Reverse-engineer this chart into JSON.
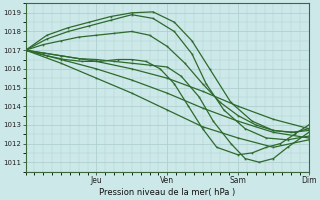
{
  "background_color": "#cce8e8",
  "plot_bg_color": "#cce8e8",
  "grid_color": "#b0d0d0",
  "line_color": "#2d6a2d",
  "xlabel_text": "Pression niveau de la mer( hPa )",
  "day_labels": [
    "Jeu",
    "Ven",
    "Sam",
    "Dim"
  ],
  "day_positions": [
    1.0,
    2.0,
    3.0,
    4.0
  ],
  "ylim": [
    1010.5,
    1019.5
  ],
  "xlim": [
    0,
    4.0
  ],
  "yticks": [
    1011,
    1012,
    1013,
    1014,
    1015,
    1016,
    1017,
    1018,
    1019
  ],
  "lines": [
    {
      "x": [
        0.0,
        0.3,
        0.6,
        0.9,
        1.2,
        1.5,
        1.8,
        2.1,
        2.35,
        2.6,
        2.9,
        3.2,
        3.5,
        3.8,
        4.0
      ],
      "y": [
        1017.0,
        1017.8,
        1018.2,
        1018.5,
        1018.8,
        1019.0,
        1019.05,
        1018.5,
        1017.5,
        1016.0,
        1014.2,
        1013.2,
        1012.7,
        1012.6,
        1012.8
      ]
    },
    {
      "x": [
        0.0,
        0.3,
        0.6,
        0.9,
        1.2,
        1.5,
        1.8,
        2.1,
        2.35,
        2.55,
        2.8,
        3.1,
        3.4,
        3.7,
        4.0
      ],
      "y": [
        1017.0,
        1017.6,
        1018.0,
        1018.3,
        1018.6,
        1018.9,
        1018.7,
        1018.0,
        1016.8,
        1015.2,
        1013.8,
        1012.8,
        1012.3,
        1012.2,
        1012.4
      ]
    },
    {
      "x": [
        0.0,
        0.25,
        0.5,
        0.75,
        1.0,
        1.25,
        1.5,
        1.75,
        2.0,
        2.25,
        2.5,
        2.75,
        3.0,
        3.25,
        3.5,
        3.75,
        4.0
      ],
      "y": [
        1017.0,
        1017.3,
        1017.5,
        1017.7,
        1017.8,
        1017.9,
        1018.0,
        1017.8,
        1017.2,
        1016.3,
        1015.2,
        1014.2,
        1013.5,
        1013.0,
        1012.7,
        1012.6,
        1012.7
      ]
    },
    {
      "x": [
        0.0,
        0.5,
        1.0,
        1.5,
        2.0,
        2.5,
        3.0,
        3.5,
        4.0
      ],
      "y": [
        1017.0,
        1016.7,
        1016.4,
        1016.0,
        1015.5,
        1014.8,
        1014.0,
        1013.3,
        1012.8
      ]
    },
    {
      "x": [
        0.0,
        0.5,
        1.0,
        1.5,
        2.0,
        2.5,
        3.0,
        3.5,
        4.0
      ],
      "y": [
        1017.0,
        1016.5,
        1016.0,
        1015.4,
        1014.7,
        1013.9,
        1013.2,
        1012.6,
        1012.3
      ]
    },
    {
      "x": [
        0.0,
        0.5,
        1.0,
        1.5,
        2.0,
        2.5,
        3.0,
        3.5,
        4.0
      ],
      "y": [
        1017.0,
        1016.3,
        1015.5,
        1014.7,
        1013.8,
        1012.9,
        1012.3,
        1011.8,
        1012.2
      ]
    },
    {
      "x": [
        0.0,
        0.25,
        0.5,
        0.75,
        1.0,
        1.25,
        1.5,
        1.75,
        2.0,
        2.2,
        2.45,
        2.65,
        2.9,
        3.1,
        3.3,
        3.5,
        3.7,
        4.0
      ],
      "y": [
        1017.0,
        1016.85,
        1016.7,
        1016.55,
        1016.5,
        1016.4,
        1016.3,
        1016.2,
        1016.1,
        1015.6,
        1014.5,
        1013.2,
        1012.0,
        1011.2,
        1011.0,
        1011.2,
        1011.8,
        1012.6
      ]
    },
    {
      "x": [
        0.0,
        0.3,
        0.55,
        0.8,
        1.05,
        1.3,
        1.5,
        1.7,
        1.9,
        2.1,
        2.3,
        2.5,
        2.7,
        3.0,
        3.2,
        3.4,
        3.6,
        3.8,
        4.0
      ],
      "y": [
        1017.0,
        1016.7,
        1016.5,
        1016.4,
        1016.4,
        1016.5,
        1016.5,
        1016.4,
        1016.0,
        1015.2,
        1014.0,
        1012.8,
        1011.8,
        1011.4,
        1011.5,
        1011.8,
        1012.0,
        1012.5,
        1013.0
      ]
    }
  ]
}
